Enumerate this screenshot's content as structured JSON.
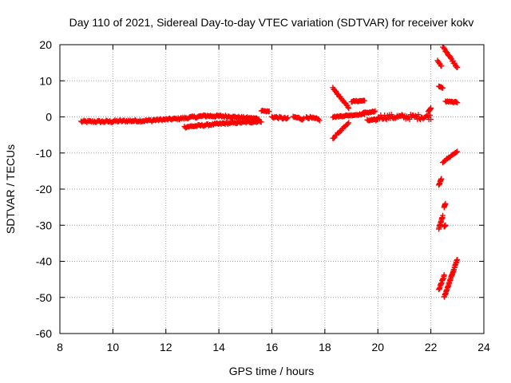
{
  "chart_data": {
    "type": "scatter",
    "title": "Day 110 of 2021, Sidereal Day-to-day VTEC variation (SDTVAR) for receiver kokv",
    "xlabel": "GPS time / hours",
    "ylabel": "SDTVAR / TECUs",
    "xlim": [
      8,
      24
    ],
    "ylim": [
      -60,
      20
    ],
    "xticks": [
      "8",
      "10",
      "12",
      "14",
      "16",
      "18",
      "20",
      "22",
      "24"
    ],
    "yticks": [
      "20",
      "10",
      "0",
      "-10",
      "-20",
      "-30",
      "-40",
      "-50",
      "-60"
    ],
    "grid": true,
    "marker": "+",
    "colors": {
      "series": "#ff0000",
      "grid": "#a0a0a0",
      "axis": "#000000"
    },
    "segments": [
      {
        "x": [
          8.8,
          10.0
        ],
        "y": [
          -1.3,
          -1.3
        ],
        "spread": 0.6
      },
      {
        "x": [
          10.0,
          11.5
        ],
        "y": [
          -1.2,
          -1.0
        ],
        "spread": 0.6
      },
      {
        "x": [
          11.5,
          12.5
        ],
        "y": [
          -0.9,
          -0.5
        ],
        "spread": 0.5
      },
      {
        "x": [
          12.5,
          13.5
        ],
        "y": [
          -0.5,
          0.3
        ],
        "spread": 0.6
      },
      {
        "x": [
          13.5,
          14.5
        ],
        "y": [
          0.3,
          0.1
        ],
        "spread": 0.6
      },
      {
        "x": [
          14.5,
          15.5
        ],
        "y": [
          0.0,
          -0.5
        ],
        "spread": 0.5
      },
      {
        "x": [
          12.7,
          14.2
        ],
        "y": [
          -2.8,
          -1.8
        ],
        "spread": 0.5
      },
      {
        "x": [
          14.2,
          15.6
        ],
        "y": [
          -1.8,
          -1.2
        ],
        "spread": 0.5
      },
      {
        "x": [
          15.6,
          15.9
        ],
        "y": [
          1.7,
          1.5
        ],
        "spread": 0.3
      },
      {
        "x": [
          16.0,
          16.6
        ],
        "y": [
          0.0,
          -0.5
        ],
        "spread": 0.6
      },
      {
        "x": [
          16.8,
          17.2
        ],
        "y": [
          0.0,
          -0.6
        ],
        "spread": 0.6
      },
      {
        "x": [
          17.3,
          17.8
        ],
        "y": [
          0.0,
          -0.8
        ],
        "spread": 0.6
      },
      {
        "x": [
          18.3,
          18.9
        ],
        "y": [
          8.0,
          2.5
        ],
        "spread": 0.4
      },
      {
        "x": [
          18.3,
          18.9
        ],
        "y": [
          -6.0,
          -1.5
        ],
        "spread": 0.4
      },
      {
        "x": [
          18.3,
          19.5
        ],
        "y": [
          0.0,
          0.8
        ],
        "spread": 0.3
      },
      {
        "x": [
          19.0,
          19.5
        ],
        "y": [
          4.3,
          4.5
        ],
        "spread": 0.3
      },
      {
        "x": [
          19.4,
          19.9
        ],
        "y": [
          1.0,
          1.5
        ],
        "spread": 0.4
      },
      {
        "x": [
          19.6,
          20.0
        ],
        "y": [
          -1.0,
          -0.8
        ],
        "spread": 0.4
      },
      {
        "x": [
          20.0,
          22.0
        ],
        "y": [
          0.0,
          0.0
        ],
        "spread": 1.4
      },
      {
        "x": [
          21.9,
          22.0
        ],
        "y": [
          1.5,
          2.5
        ],
        "spread": 0.3
      },
      {
        "x": [
          22.25,
          22.4
        ],
        "y": [
          15.5,
          14.0
        ],
        "spread": 0.3
      },
      {
        "x": [
          22.3,
          22.45
        ],
        "y": [
          8.5,
          8.0
        ],
        "spread": 0.2
      },
      {
        "x": [
          22.45,
          23.0
        ],
        "y": [
          19.5,
          13.5
        ],
        "spread": 0.5
      },
      {
        "x": [
          22.55,
          23.0
        ],
        "y": [
          4.3,
          4.0
        ],
        "spread": 0.3
      },
      {
        "x": [
          22.45,
          23.0
        ],
        "y": [
          -12.5,
          -9.5
        ],
        "spread": 0.4
      },
      {
        "x": [
          22.3,
          22.4
        ],
        "y": [
          -19.0,
          -17.0
        ],
        "spread": 0.3
      },
      {
        "x": [
          22.3,
          22.45
        ],
        "y": [
          -31.0,
          -27.5
        ],
        "spread": 0.4
      },
      {
        "x": [
          22.5,
          22.55
        ],
        "y": [
          -25.0,
          -24.0
        ],
        "spread": 0.2
      },
      {
        "x": [
          22.5,
          22.55
        ],
        "y": [
          -30.5,
          -30.0
        ],
        "spread": 0.2
      },
      {
        "x": [
          22.3,
          22.5
        ],
        "y": [
          -48.0,
          -44.0
        ],
        "spread": 0.5
      },
      {
        "x": [
          22.5,
          23.0
        ],
        "y": [
          -50.0,
          -39.5
        ],
        "spread": 0.5
      }
    ]
  }
}
